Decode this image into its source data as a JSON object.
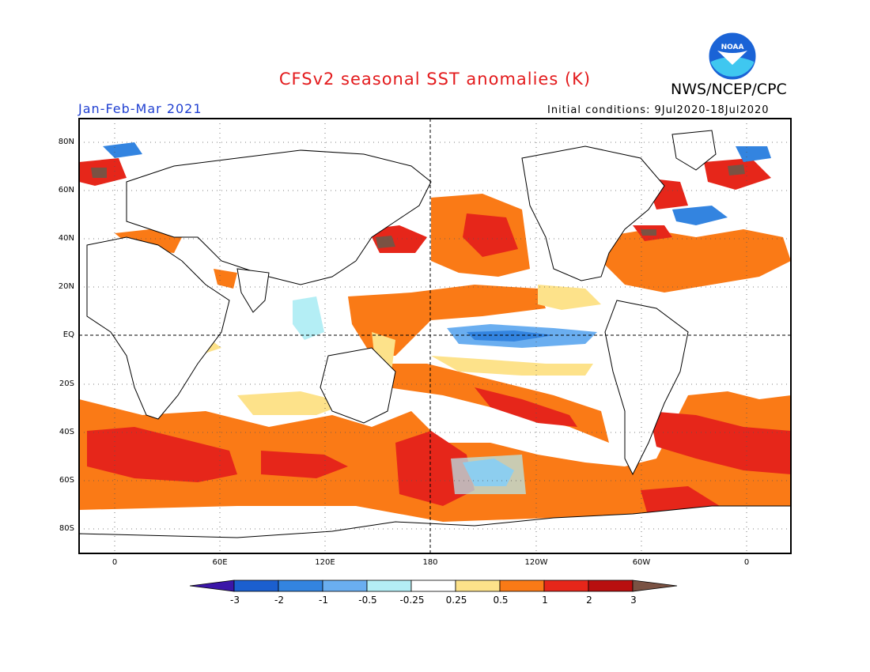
{
  "header": {
    "title": "CFSv2 seasonal SST anomalies (K)",
    "agency": "NWS/NCEP/CPC",
    "season": "Jan-Feb-Mar 2021",
    "initial_conditions": "Initial conditions: 9Jul2020-18Jul2020",
    "logo_text": "NOAA"
  },
  "map": {
    "lat_labels": [
      "80N",
      "60N",
      "40N",
      "20N",
      "EQ",
      "20S",
      "40S",
      "60S",
      "80S"
    ],
    "lon_labels": [
      "0",
      "60E",
      "120E",
      "180",
      "120W",
      "60W",
      "0"
    ]
  },
  "colorbar": {
    "labels": [
      "-3",
      "-2",
      "-1",
      "-0.5",
      "-0.25",
      "0.25",
      "0.5",
      "1",
      "2",
      "3"
    ],
    "colors": [
      "#3b16a8",
      "#1b5fcf",
      "#3384e0",
      "#6aaef0",
      "#b4eef5",
      "#ffffff",
      "#fde28a",
      "#fa7a16",
      "#e6261a",
      "#b80f0f",
      "#7a5243"
    ]
  }
}
